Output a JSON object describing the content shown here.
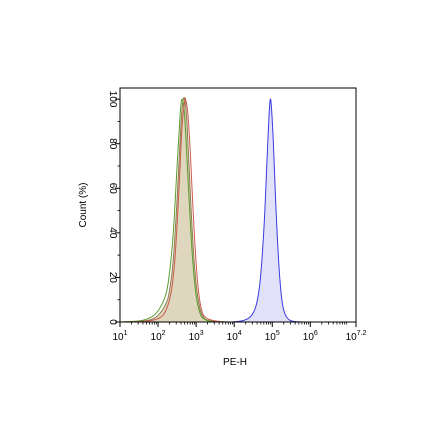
{
  "chart_data": {
    "type": "area",
    "xlabel": "PE-H",
    "ylabel": "Count (%)",
    "xscale": "log",
    "xlim_log10": [
      1,
      7.2
    ],
    "ylim": [
      0,
      105
    ],
    "x_ticks": [
      {
        "base": "10",
        "exp": "1",
        "log10": 1
      },
      {
        "base": "10",
        "exp": "2",
        "log10": 2
      },
      {
        "base": "10",
        "exp": "3",
        "log10": 3
      },
      {
        "base": "10",
        "exp": "4",
        "log10": 4
      },
      {
        "base": "10",
        "exp": "5",
        "log10": 5
      },
      {
        "base": "10",
        "exp": "6",
        "log10": 6
      },
      {
        "base": "10",
        "exp": "7.2",
        "log10": 7.2
      }
    ],
    "y_ticks": [
      "0",
      "20",
      "40",
      "60",
      "80",
      "100"
    ],
    "grid": false,
    "legend": "none",
    "series": [
      {
        "color": "#8b7a50",
        "fill": "#d8cfb1",
        "peak_log10": 2.68,
        "x_log10": [
          1.0,
          1.5,
          1.8,
          2.0,
          2.2,
          2.3,
          2.4,
          2.5,
          2.6,
          2.65,
          2.7,
          2.75,
          2.8,
          2.9,
          3.0,
          3.1,
          3.2,
          3.3,
          3.5,
          3.8
        ],
        "y": [
          0,
          0.3,
          1,
          3,
          8,
          14,
          28,
          55,
          88,
          99,
          100,
          92,
          75,
          40,
          17,
          6,
          2,
          0.8,
          0.2,
          0
        ]
      },
      {
        "color": "#5a9a2a",
        "fill": "none",
        "peak_log10": 2.63,
        "x_log10": [
          1.0,
          1.5,
          1.8,
          2.0,
          2.2,
          2.3,
          2.4,
          2.5,
          2.58,
          2.63,
          2.7,
          2.8,
          2.9,
          3.0,
          3.1,
          3.2,
          3.4,
          3.8
        ],
        "y": [
          0,
          0.5,
          2,
          5,
          12,
          22,
          40,
          70,
          93,
          100,
          92,
          60,
          30,
          12,
          4,
          1.5,
          0.3,
          0
        ]
      },
      {
        "color": "#cc5a4a",
        "fill": "none",
        "peak_log10": 2.72,
        "x_log10": [
          1.0,
          1.6,
          2.0,
          2.2,
          2.35,
          2.45,
          2.55,
          2.63,
          2.7,
          2.72,
          2.78,
          2.85,
          2.95,
          3.05,
          3.15,
          3.3,
          3.6,
          3.9
        ],
        "y": [
          0,
          0.2,
          1.5,
          5,
          14,
          30,
          60,
          88,
          99,
          100,
          94,
          75,
          40,
          16,
          5,
          1.5,
          0.3,
          0
        ]
      },
      {
        "color": "#3a3ae0",
        "fill": "#dcdcf8",
        "peak_log10": 4.95,
        "x_log10": [
          3.9,
          4.2,
          4.4,
          4.55,
          4.65,
          4.72,
          4.8,
          4.86,
          4.92,
          4.95,
          4.98,
          5.03,
          5.1,
          5.18,
          5.26,
          5.35,
          5.5,
          5.8
        ],
        "y": [
          0,
          0.5,
          2,
          6,
          14,
          26,
          48,
          72,
          94,
          100,
          96,
          80,
          50,
          24,
          9,
          3,
          0.5,
          0
        ]
      }
    ]
  }
}
